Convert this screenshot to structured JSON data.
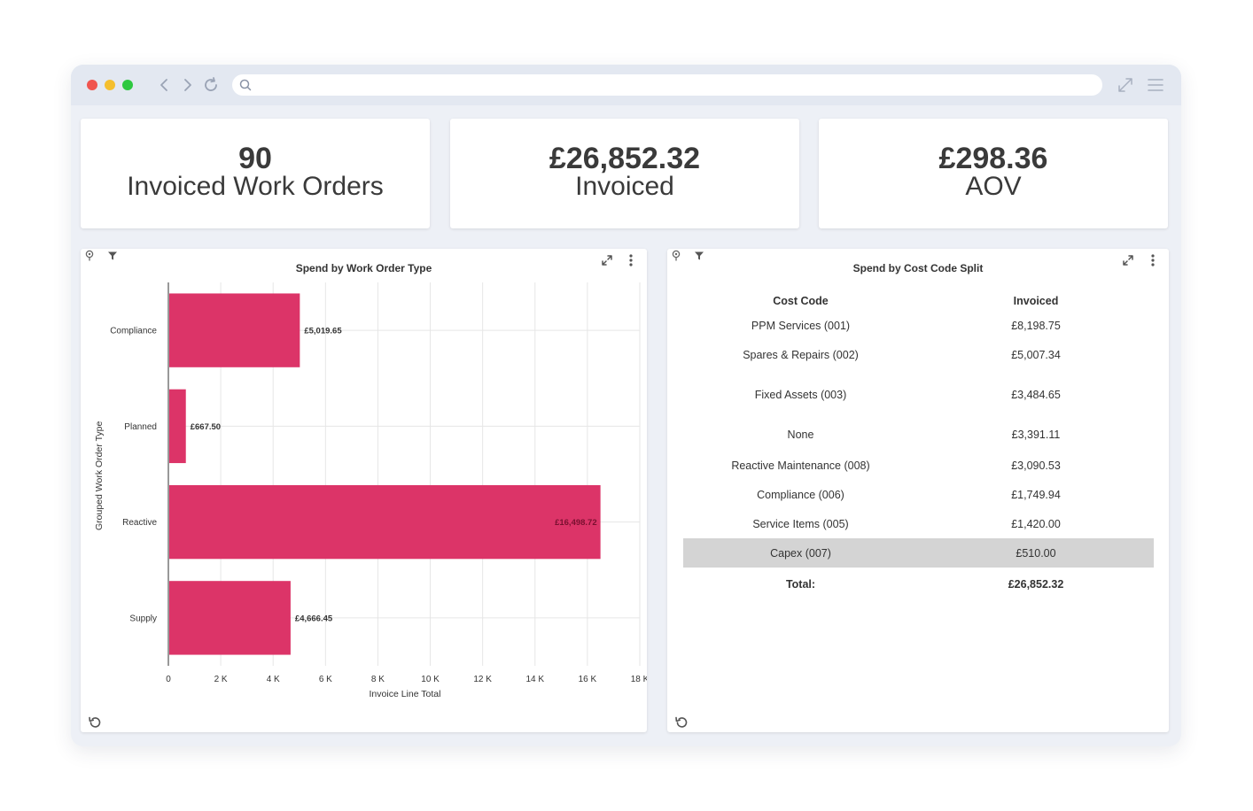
{
  "kpis": [
    {
      "value": "90",
      "label": "Invoiced Work Orders"
    },
    {
      "value": "£26,852.32",
      "label": "Invoiced"
    },
    {
      "value": "£298.36",
      "label": "AOV"
    }
  ],
  "left_panel": {
    "title": "Spend by Work Order Type"
  },
  "right_panel": {
    "title": "Spend by Cost Code Split",
    "columns": [
      "Cost Code",
      "Invoiced"
    ],
    "rows": [
      {
        "code": "PPM Services (001)",
        "invoiced": "£8,198.75"
      },
      {
        "code": "Spares & Repairs (002)",
        "invoiced": "£5,007.34"
      },
      {
        "code": "Fixed Assets (003)",
        "invoiced": "£3,484.65"
      },
      {
        "code": "None",
        "invoiced": "£3,391.11"
      },
      {
        "code": "Reactive Maintenance (008)",
        "invoiced": "£3,090.53"
      },
      {
        "code": "Compliance (006)",
        "invoiced": "£1,749.94"
      },
      {
        "code": "Service Items (005)",
        "invoiced": "£1,420.00"
      },
      {
        "code": "Capex (007)",
        "invoiced": "£510.00"
      }
    ],
    "total_label": "Total:",
    "total_value": "£26,852.32"
  },
  "colors": {
    "bar": "#dc3468",
    "grid": "#e6e6e6",
    "highlight_row": "#d4d4d4"
  },
  "icons": [
    "search-icon",
    "back-icon",
    "forward-icon",
    "reload-icon",
    "fullscreen-icon",
    "hamburger-menu-icon",
    "pin-icon",
    "filter-icon",
    "expand-icon",
    "more-icon",
    "undo-icon"
  ],
  "chart_data": {
    "type": "bar",
    "orientation": "horizontal",
    "title": "Spend by Work Order Type",
    "categories": [
      "Compliance",
      "Planned",
      "Reactive",
      "Supply"
    ],
    "values": [
      5019.65,
      667.5,
      16498.72,
      4666.45
    ],
    "data_labels": [
      "£5,019.65",
      "£667.50",
      "£16,498.72",
      "£4,666.45"
    ],
    "xlabel": "Invoice Line Total",
    "ylabel": "Grouped Work Order Type",
    "xlim": [
      0,
      18000
    ],
    "xticks": [
      0,
      2000,
      4000,
      6000,
      8000,
      10000,
      12000,
      14000,
      16000,
      18000
    ],
    "xtick_labels": [
      "0",
      "2 K",
      "4 K",
      "6 K",
      "8 K",
      "10 K",
      "12 K",
      "14 K",
      "16 K",
      "18 K"
    ],
    "grid": true
  }
}
